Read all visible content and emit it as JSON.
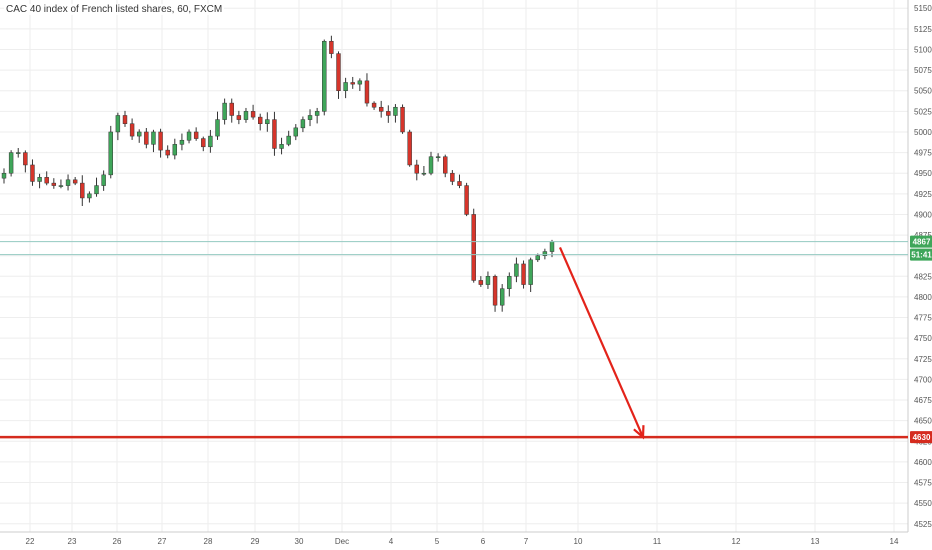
{
  "chart_data": {
    "type": "candlestick",
    "title": "CAC 40 index of French listed shares, 60, FXCM",
    "y_ticks": [
      5150,
      5125,
      5100,
      5075,
      5050,
      5025,
      5000,
      4975,
      4950,
      4925,
      4900,
      4875,
      4850,
      4825,
      4800,
      4775,
      4750,
      4725,
      4700,
      4675,
      4650,
      4625,
      4600,
      4575,
      4550,
      4525
    ],
    "ylim": [
      4515,
      5160
    ],
    "x_ticks": [
      "22",
      "23",
      "26",
      "27",
      "28",
      "29",
      "30",
      "Dec",
      "4",
      "5",
      "6",
      "7",
      "10",
      "11",
      "12",
      "13",
      "14"
    ],
    "current_price_label": "4867",
    "countdown_label": "51:41",
    "target_label": "4630",
    "target_level": 4630,
    "current_level": 4867,
    "arrow_from_price": 4860,
    "arrow_to_price": 4630,
    "grid": true,
    "colors": {
      "up": "#3fa65a",
      "down": "#d6352b",
      "wick": "#333333",
      "grid": "#eeeeee",
      "target_line": "#d52b1e",
      "arrow": "#e3231a",
      "current_badge": "#3fa65a",
      "current_line": "#93c9c1",
      "countdown_badge": "#3fa65a",
      "target_badge": "#d52b1e"
    },
    "path_close": [
      4950,
      4975,
      4975,
      4960,
      4940,
      4945,
      4938,
      4935,
      4935,
      4942,
      4938,
      4920,
      4925,
      4935,
      4948,
      5000,
      5020,
      5010,
      4995,
      5000,
      4985,
      5000,
      4978,
      4972,
      4985,
      4990,
      5000,
      4992,
      4982,
      4995,
      5015,
      5035,
      5020,
      5015,
      5025,
      5018,
      5010,
      5015,
      4980,
      4985,
      4995,
      5005,
      5015,
      5020,
      5025,
      5110,
      5095,
      5050,
      5060,
      5058,
      5062,
      5035,
      5030,
      5025,
      5020,
      5030,
      5000,
      4960,
      4950,
      4950,
      4970,
      4970,
      4950,
      4940,
      4935,
      4900,
      4820,
      4815,
      4825,
      4790,
      4810,
      4825,
      4840,
      4815,
      4845,
      4850,
      4855,
      4867
    ]
  }
}
